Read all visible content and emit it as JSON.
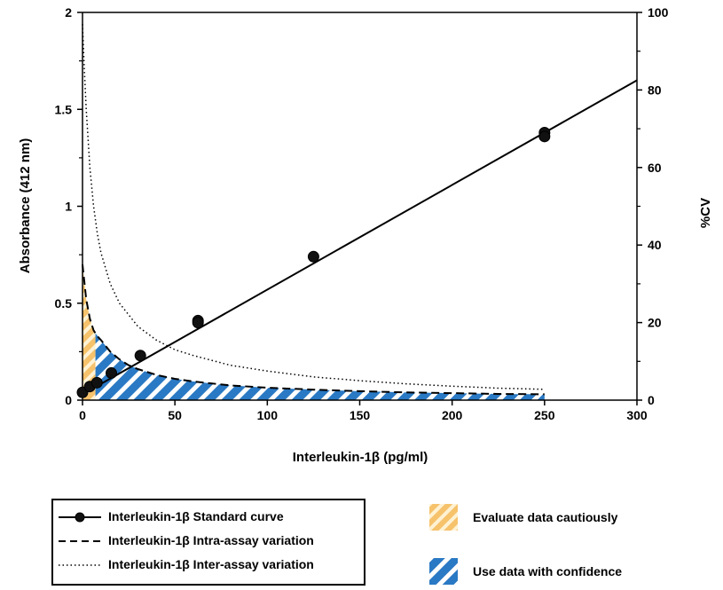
{
  "chart_data": {
    "type": "line",
    "xlabel": "Interleukin-1β (pg/ml)",
    "ylabel": "Absorbance (412 nm)",
    "y2label": "%CV",
    "xlim": [
      0,
      300
    ],
    "ylim": [
      0,
      2
    ],
    "y2lim": [
      0,
      100
    ],
    "x_ticks": [
      "0",
      "50",
      "100",
      "150",
      "200",
      "250",
      "300"
    ],
    "y_ticks": [
      "0",
      "0.5",
      "1",
      "1.5",
      "2"
    ],
    "y2_ticks": [
      "0",
      "20",
      "40",
      "60",
      "80",
      "100"
    ],
    "grid": false,
    "standard_curve": {
      "name": "Interleukin-1β Standard curve",
      "points": [
        {
          "x": 0,
          "y": 0.04
        },
        {
          "x": 3.9,
          "y": 0.07
        },
        {
          "x": 7.8,
          "y": 0.09
        },
        {
          "x": 15.6,
          "y": 0.14
        },
        {
          "x": 31.3,
          "y": 0.23
        },
        {
          "x": 62.5,
          "y": 0.41
        },
        {
          "x": 62.5,
          "y": 0.4
        },
        {
          "x": 125,
          "y": 0.74
        },
        {
          "x": 250,
          "y": 1.38
        },
        {
          "x": 250,
          "y": 1.36
        }
      ],
      "fit_line": {
        "x": [
          0,
          300
        ],
        "y": [
          0.03,
          1.65
        ]
      }
    },
    "intra_assay": {
      "name": "Interleukin-1β Intra-assay variation",
      "x": [
        0,
        2,
        4,
        6,
        8,
        10,
        15,
        20,
        25,
        30,
        40,
        50,
        60,
        80,
        100,
        125,
        150,
        175,
        200,
        225,
        250
      ],
      "cv": [
        35,
        26,
        21,
        18,
        16.5,
        15.5,
        12.5,
        10.5,
        9,
        8,
        6.5,
        5.5,
        4.8,
        3.8,
        3.2,
        2.7,
        2.3,
        2,
        1.8,
        1.6,
        1.5
      ]
    },
    "inter_assay": {
      "name": "Interleukin-1β Inter-assay variation",
      "x": [
        0,
        1,
        2,
        4,
        6,
        8,
        10,
        15,
        20,
        30,
        40,
        50,
        60,
        80,
        100,
        125,
        150,
        175,
        200,
        225,
        250
      ],
      "cv": [
        97,
        85,
        75,
        60,
        50,
        43,
        38,
        30,
        25,
        19,
        15.5,
        13,
        11.5,
        9,
        7.5,
        6,
        5,
        4.2,
        3.6,
        3.1,
        2.8
      ]
    },
    "zones": [
      {
        "label": "Evaluate data cautiously",
        "from": 0,
        "to": 7,
        "color": "#f6c26b"
      },
      {
        "label": "Use data with confidence",
        "from": 7,
        "to": 250,
        "color": "#2a79c4"
      }
    ]
  },
  "legend": {
    "standard_curve": "Interleukin-1β Standard curve",
    "intra_assay": "Interleukin-1β Intra-assay variation",
    "inter_assay": "Interleukin-1β Inter-assay variation"
  },
  "zone_legend": {
    "caution": "Evaluate data cautiously",
    "confidence": "Use data with confidence"
  }
}
